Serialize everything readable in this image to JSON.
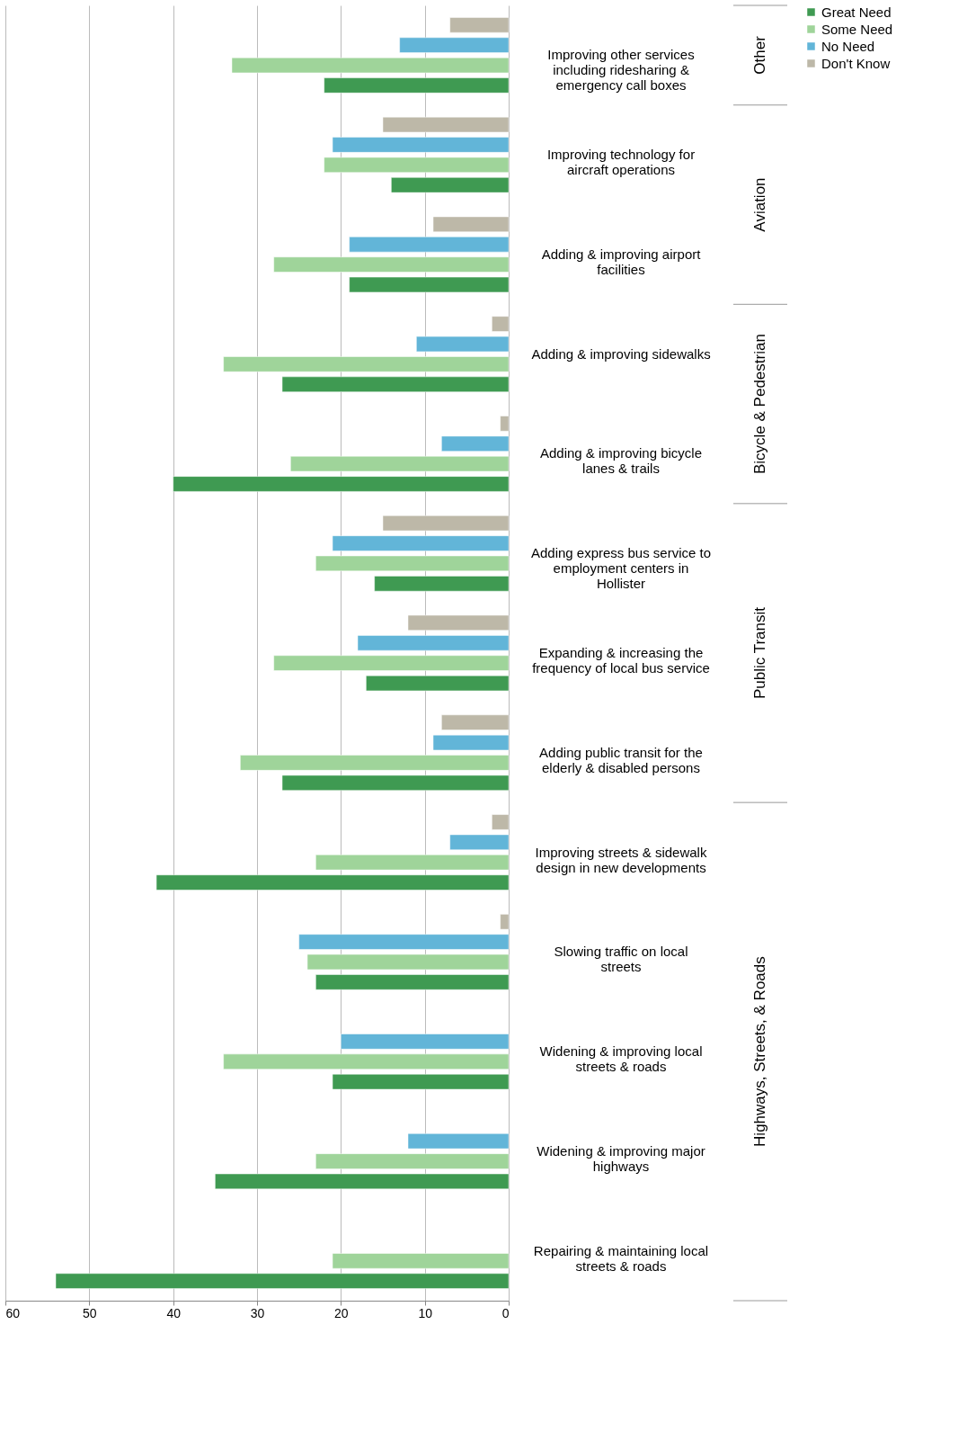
{
  "chart_data": {
    "type": "bar",
    "orientation": "horizontal",
    "categories": [
      "Improving other services including ridesharing & emergency call boxes",
      "Improving technology for aircraft operations",
      "Adding & improving airport facilities",
      "Adding & improving sidewalks",
      "Adding & improving bicycle lanes & trails",
      "Adding express bus service to employment centers in Hollister",
      "Expanding & increasing the frequency of local bus service",
      "Adding public transit for the elderly & disabled persons",
      "Improving streets & sidewalk design in new developments",
      "Slowing traffic on local streets",
      "Widening & improving local streets & roads",
      "Widening & improving major highways",
      "Repairing & maintaining local streets & roads"
    ],
    "series": [
      {
        "name": "Great Need",
        "color": "#3f9a52",
        "values": [
          22,
          14,
          19,
          27,
          40,
          16,
          17,
          27,
          42,
          23,
          21,
          35,
          54
        ]
      },
      {
        "name": "Some Need",
        "color": "#9fd49a",
        "values": [
          33,
          22,
          28,
          34,
          26,
          23,
          28,
          32,
          23,
          24,
          34,
          23,
          21
        ]
      },
      {
        "name": "No Need",
        "color": "#62b5d8",
        "values": [
          13,
          21,
          19,
          11,
          8,
          21,
          18,
          9,
          7,
          25,
          20,
          12,
          null
        ]
      },
      {
        "name": "Don't Know",
        "color": "#bdb8a8",
        "values": [
          7,
          15,
          9,
          2,
          1,
          15,
          12,
          8,
          2,
          1,
          null,
          null,
          null
        ]
      }
    ],
    "xlim": [
      60,
      0
    ],
    "xticks": [
      0,
      10,
      20,
      30,
      40,
      50,
      60
    ],
    "grid": "x",
    "legend": "right",
    "annotations": [
      "Other",
      "Aviation",
      "Bicycle & Pedestrian",
      "Public Transit",
      "Highways, Streets, & Roads"
    ]
  }
}
